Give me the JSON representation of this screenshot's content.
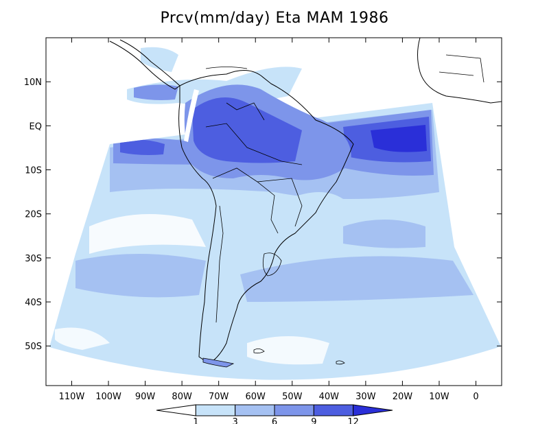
{
  "title": "Prcv(mm/day) Eta MAM 1986",
  "chart_data": {
    "type": "heatmap",
    "title": "Prcv(mm/day) Eta MAM 1986",
    "variable": "Prcv",
    "units": "mm/day",
    "model": "Eta",
    "season": "MAM",
    "year": "1986",
    "y_tick_labels": [
      "10N",
      "EQ",
      "10S",
      "20S",
      "30S",
      "40S",
      "50S"
    ],
    "y_tick_values": [
      10,
      0,
      -10,
      -20,
      -30,
      -40,
      -50
    ],
    "x_tick_labels": [
      "110W",
      "100W",
      "90W",
      "80W",
      "70W",
      "60W",
      "50W",
      "40W",
      "30W",
      "20W",
      "10W",
      "0"
    ],
    "x_tick_values": [
      -110,
      -100,
      -90,
      -80,
      -70,
      -60,
      -50,
      -40,
      -30,
      -20,
      -10,
      0
    ],
    "xlim": [
      -117,
      7
    ],
    "ylim": [
      -59,
      20
    ],
    "colorbar": {
      "levels": [
        "1",
        "3",
        "6",
        "9",
        "12"
      ],
      "colors": [
        "#ffffff",
        "#c7e3f9",
        "#a5c1f2",
        "#7d95ea",
        "#4d5ee0",
        "#2a2fd8"
      ]
    },
    "colors_that_matter": {
      "map_outline": "#000000",
      "domain_outside": "#ffffff"
    }
  }
}
